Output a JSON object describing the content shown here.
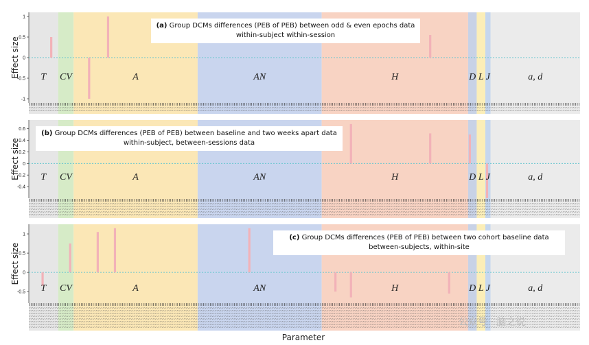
{
  "colors": {
    "T": "#e6e6e6",
    "CV": "#d6ebc7",
    "A": "#fbe7b6",
    "AN": "#c9d5ee",
    "H": "#f8d3c3",
    "D": "#c8d2e6",
    "L": "#fbeeb8",
    "J": "#c5d7ef",
    "ad": "#ebebeb",
    "bar": "#f2b2b8",
    "zero_line": "#69c6cf",
    "text": "#222222"
  },
  "x_axis_label": "Parameter",
  "watermark": "公众号 · 脑之说",
  "chart_data": [
    {
      "type": "bar",
      "panel": "a",
      "caption_lines": [
        "(a) Group DCMs differences (PEB of PEB) between odd & even epochs data",
        "within-subject within-session"
      ],
      "ylabel": "Effect size",
      "ylim": [
        -1.1,
        1.1
      ],
      "yticks": [
        -1,
        -0.5,
        0,
        0.5,
        1
      ],
      "ytick_labels": [
        "-1",
        "-0.5",
        "0",
        "0.5",
        "1"
      ],
      "segments": [
        {
          "key": "T",
          "label": "T",
          "start": 0,
          "end": 17
        },
        {
          "key": "CV",
          "label": "CV",
          "start": 17,
          "end": 26
        },
        {
          "key": "A",
          "label": "A",
          "start": 26,
          "end": 98
        },
        {
          "key": "AN",
          "label": "AN",
          "start": 98,
          "end": 170
        },
        {
          "key": "H",
          "label": "H",
          "start": 170,
          "end": 255
        },
        {
          "key": "D",
          "label": "D",
          "start": 255,
          "end": 260
        },
        {
          "key": "L",
          "label": "L",
          "start": 260,
          "end": 265
        },
        {
          "key": "J",
          "label": "J",
          "start": 265,
          "end": 268
        },
        {
          "key": "ad",
          "label": "a, d",
          "start": 268,
          "end": 320
        }
      ],
      "bars": [
        {
          "x": 13,
          "value": 0.5
        },
        {
          "x": 35,
          "value": -1.0
        },
        {
          "x": 46,
          "value": 1.0
        },
        {
          "x": 233,
          "value": 0.55
        }
      ]
    },
    {
      "type": "bar",
      "panel": "b",
      "caption_lines": [
        "(b) Group DCMs differences (PEB of PEB) between baseline and two weeks apart data",
        "within-subject, between-sessions data"
      ],
      "ylabel": "Effect size",
      "ylim": [
        -0.6,
        0.75
      ],
      "yticks": [
        -0.4,
        -0.2,
        0,
        0.2,
        0.4,
        0.6
      ],
      "ytick_labels": [
        "-0.4",
        "-0.2",
        "0",
        "0.2",
        "0.4",
        "0.6"
      ],
      "segments": [
        {
          "key": "T",
          "label": "T",
          "start": 0,
          "end": 17
        },
        {
          "key": "CV",
          "label": "CV",
          "start": 17,
          "end": 26
        },
        {
          "key": "A",
          "label": "A",
          "start": 26,
          "end": 98
        },
        {
          "key": "AN",
          "label": "AN",
          "start": 98,
          "end": 170
        },
        {
          "key": "H",
          "label": "H",
          "start": 170,
          "end": 255
        },
        {
          "key": "D",
          "label": "D",
          "start": 255,
          "end": 260
        },
        {
          "key": "L",
          "label": "L",
          "start": 260,
          "end": 265
        },
        {
          "key": "J",
          "label": "J",
          "start": 265,
          "end": 268
        },
        {
          "key": "ad",
          "label": "a, d",
          "start": 268,
          "end": 320
        }
      ],
      "bars": [
        {
          "x": 187,
          "value": 0.68
        },
        {
          "x": 233,
          "value": 0.52
        },
        {
          "x": 256,
          "value": 0.5
        },
        {
          "x": 266,
          "value": -0.6
        }
      ]
    },
    {
      "type": "bar",
      "panel": "c",
      "caption_lines": [
        "(c) Group DCMs differences (PEB of PEB) between two cohort baseline data",
        "between-subjects, within-site"
      ],
      "ylabel": "Effect size",
      "ylim": [
        -0.8,
        1.25
      ],
      "yticks": [
        -0.5,
        0,
        0.5,
        1
      ],
      "ytick_labels": [
        "-0.5",
        "0",
        "0.5",
        "1"
      ],
      "segments": [
        {
          "key": "T",
          "label": "T",
          "start": 0,
          "end": 17
        },
        {
          "key": "CV",
          "label": "CV",
          "start": 17,
          "end": 26
        },
        {
          "key": "A",
          "label": "A",
          "start": 26,
          "end": 98
        },
        {
          "key": "AN",
          "label": "AN",
          "start": 98,
          "end": 170
        },
        {
          "key": "H",
          "label": "H",
          "start": 170,
          "end": 255
        },
        {
          "key": "D",
          "label": "D",
          "start": 255,
          "end": 260
        },
        {
          "key": "L",
          "label": "L",
          "start": 260,
          "end": 265
        },
        {
          "key": "J",
          "label": "J",
          "start": 265,
          "end": 268
        },
        {
          "key": "ad",
          "label": "a, d",
          "start": 268,
          "end": 320
        }
      ],
      "bars": [
        {
          "x": 8,
          "value": -0.35
        },
        {
          "x": 24,
          "value": 0.75
        },
        {
          "x": 40,
          "value": 1.05
        },
        {
          "x": 50,
          "value": 1.15
        },
        {
          "x": 128,
          "value": 1.15
        },
        {
          "x": 178,
          "value": -0.5
        },
        {
          "x": 187,
          "value": -0.65
        },
        {
          "x": 244,
          "value": -0.55
        }
      ]
    }
  ]
}
